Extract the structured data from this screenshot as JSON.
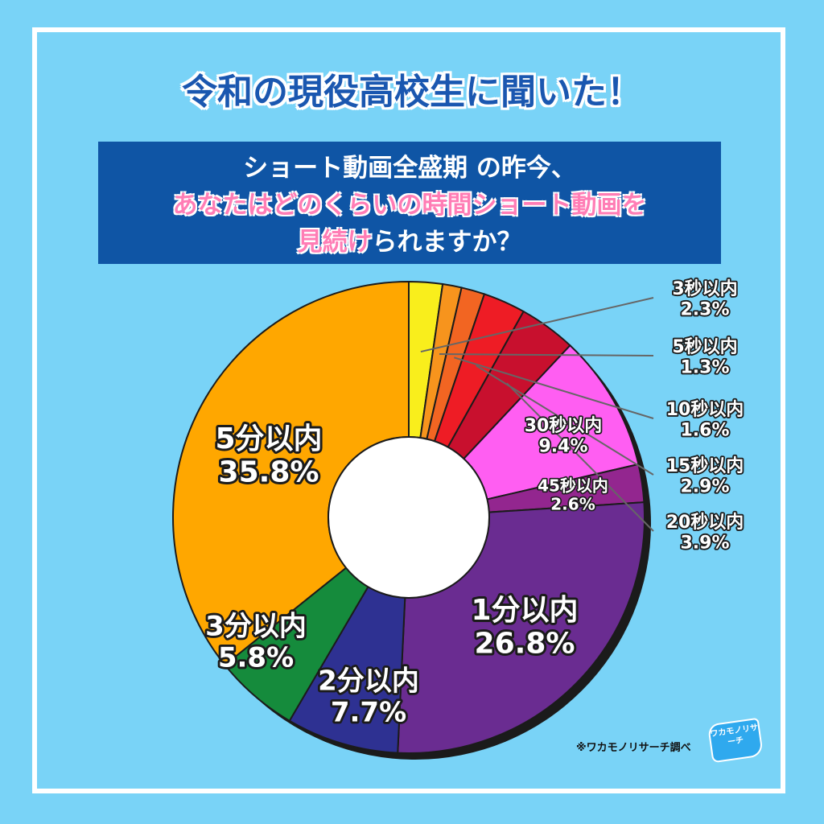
{
  "header": {
    "title": "令和の現役高校生に聞いた！"
  },
  "question": {
    "line1": "ショート動画全盛期 の昨今、",
    "line2": "あなたはどのくらいの時間ショート動画を",
    "line3_highlight": "見続け",
    "line3_rest": "られますか？"
  },
  "footer": {
    "credit": "※ワカモノリサーチ調べ",
    "logo_text": "ワカモノリサーチ"
  },
  "chart_data": {
    "type": "pie",
    "style": "donut",
    "categories": [
      "3秒以内",
      "5秒以内",
      "10秒以内",
      "15秒以内",
      "20秒以内",
      "30秒以内",
      "45秒以内",
      "1分以内",
      "2分以内",
      "3分以内",
      "5分以内"
    ],
    "values": [
      2.3,
      1.3,
      1.6,
      2.9,
      3.9,
      9.4,
      2.6,
      26.8,
      7.7,
      5.8,
      35.8
    ],
    "value_labels": [
      "2.3%",
      "1.3%",
      "1.6%",
      "2.9%",
      "3.9%",
      "9.4%",
      "2.6%",
      "26.8%",
      "7.7%",
      "5.8%",
      "35.8%"
    ],
    "unit": "%",
    "colors": [
      "#f9ee1c",
      "#f7941d",
      "#f26522",
      "#ee1c25",
      "#c8102e",
      "#ff5ef2",
      "#93268f",
      "#6a2c91",
      "#2e3192",
      "#158b3c",
      "#ffa700"
    ],
    "start": "12 o'clock",
    "direction": "clockwise",
    "legend": "none"
  }
}
